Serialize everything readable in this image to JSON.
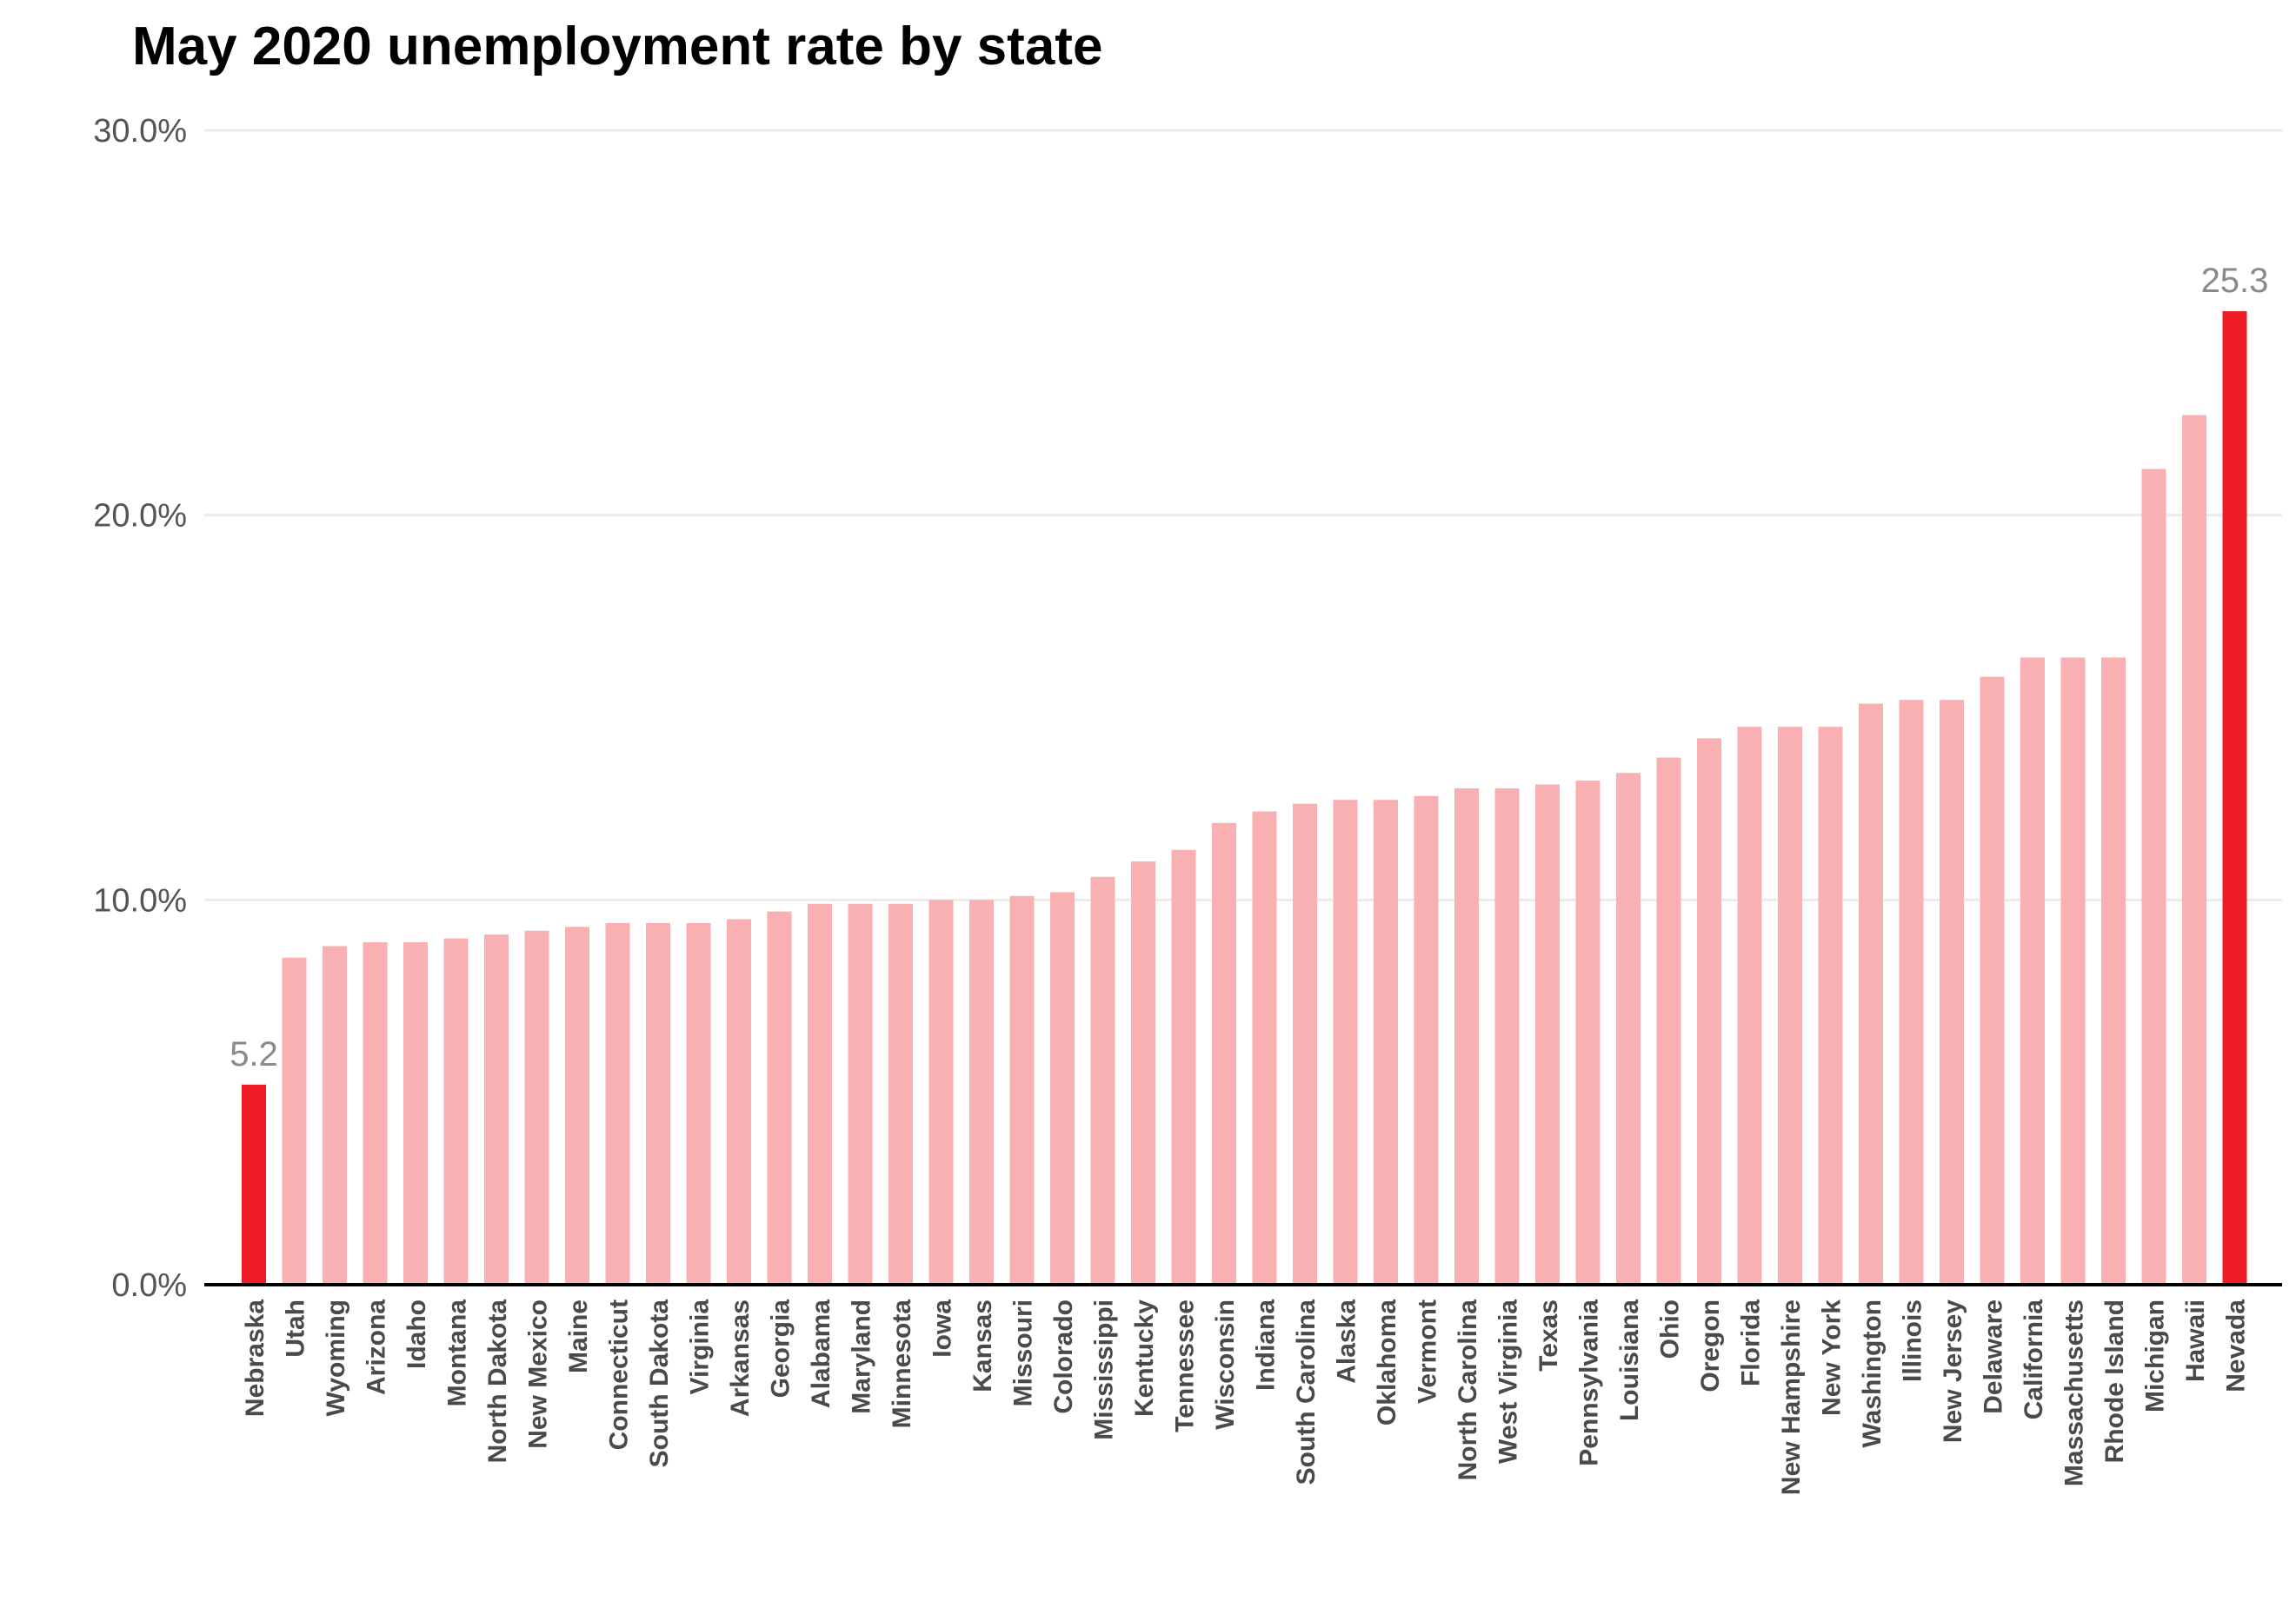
{
  "chart_data": {
    "type": "bar",
    "title": "May 2020 unemployment rate by state",
    "xlabel": "",
    "ylabel": "",
    "ylim": [
      0,
      30
    ],
    "yticks": [
      {
        "value": 0,
        "label": "0.0%"
      },
      {
        "value": 10,
        "label": "10.0%"
      },
      {
        "value": 20,
        "label": "20.0%"
      },
      {
        "value": 30,
        "label": "30.0%"
      }
    ],
    "grid": true,
    "categories": [
      "Nebraska",
      "Utah",
      "Wyoming",
      "Arizona",
      "Idaho",
      "Montana",
      "North Dakota",
      "New Mexico",
      "Maine",
      "Connecticut",
      "South Dakota",
      "Virginia",
      "Arkansas",
      "Georgia",
      "Alabama",
      "Maryland",
      "Minnesota",
      "Iowa",
      "Kansas",
      "Missouri",
      "Colorado",
      "Mississippi",
      "Kentucky",
      "Tennessee",
      "Wisconsin",
      "Indiana",
      "South Carolina",
      "Alaska",
      "Oklahoma",
      "Vermont",
      "North Carolina",
      "West Virginia",
      "Texas",
      "Pennsylvania",
      "Louisiana",
      "Ohio",
      "Oregon",
      "Florida",
      "New Hampshire",
      "New York",
      "Washington",
      "Illinois",
      "New Jersey",
      "Delaware",
      "California",
      "Massachusetts",
      "Rhode Island",
      "Michigan",
      "Hawaii",
      "Nevada"
    ],
    "values": [
      5.2,
      8.5,
      8.8,
      8.9,
      8.9,
      9.0,
      9.1,
      9.2,
      9.3,
      9.4,
      9.4,
      9.4,
      9.5,
      9.7,
      9.9,
      9.9,
      9.9,
      10.0,
      10.0,
      10.1,
      10.2,
      10.6,
      11.0,
      11.3,
      12.0,
      12.3,
      12.5,
      12.6,
      12.6,
      12.7,
      12.9,
      12.9,
      13.0,
      13.1,
      13.3,
      13.7,
      14.2,
      14.5,
      14.5,
      14.5,
      15.1,
      15.2,
      15.2,
      15.8,
      16.3,
      16.3,
      16.3,
      21.2,
      22.6,
      25.3
    ],
    "highlighted": [
      "Nebraska",
      "Nevada"
    ],
    "data_labels": [
      {
        "category": "Nebraska",
        "text": "5.2"
      },
      {
        "category": "Nevada",
        "text": "25.3"
      }
    ],
    "colors": {
      "bar": "#f8b0b3",
      "highlight": "#ee1c25",
      "grid": "#ebebeb",
      "axis": "#000000"
    }
  }
}
